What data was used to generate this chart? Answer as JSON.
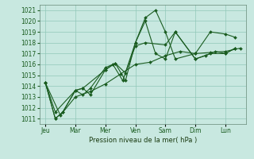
{
  "xlabel": "Pression niveau de la mer( hPa )",
  "bg_color": "#c8e8e0",
  "grid_color": "#90c8b8",
  "line_color": "#1a5c20",
  "ylim": [
    1010.5,
    1021.5
  ],
  "yticks": [
    1011,
    1012,
    1013,
    1014,
    1015,
    1016,
    1017,
    1018,
    1019,
    1020,
    1021
  ],
  "x_labels": [
    "Jeu",
    "Mar",
    "Mer",
    "Ven",
    "Sam",
    "Dim",
    "Lun"
  ],
  "x_positions": [
    0,
    1,
    2,
    3,
    4,
    5,
    6
  ],
  "xlim": [
    -0.2,
    6.7
  ],
  "series_x": [
    [
      0,
      0.33,
      0.58,
      1.0,
      1.25,
      1.5,
      2.0,
      2.33,
      2.67,
      3.0,
      3.33,
      3.67,
      4.0,
      4.33,
      5.0,
      5.5,
      6.0,
      6.33
    ],
    [
      0,
      0.33,
      0.58,
      1.0,
      1.25,
      1.5,
      2.0,
      2.33,
      2.67,
      3.0,
      3.33,
      4.0,
      4.33,
      5.0,
      5.33,
      5.67,
      6.0,
      6.33
    ],
    [
      0,
      0.33,
      1.0,
      1.25,
      2.0,
      2.25,
      2.58,
      3.0,
      3.33,
      3.67,
      4.0,
      4.33,
      5.0,
      5.5,
      6.0,
      6.33
    ],
    [
      0,
      0.5,
      1.0,
      1.5,
      2.0,
      2.5,
      3.0,
      3.5,
      4.0,
      4.5,
      5.0,
      5.5,
      6.0,
      6.5
    ]
  ],
  "series_y": [
    [
      1014.3,
      1011.0,
      1011.6,
      1013.6,
      1013.8,
      1013.2,
      1015.5,
      1016.1,
      1014.5,
      1018.0,
      1020.3,
      1021.0,
      1019.0,
      1016.5,
      1017.0,
      1019.0,
      1018.8,
      1018.5
    ],
    [
      1014.3,
      1011.0,
      1011.6,
      1013.6,
      1013.2,
      1013.8,
      1015.7,
      1016.1,
      1015.2,
      1017.7,
      1018.0,
      1017.8,
      1019.0,
      1016.5,
      1016.8,
      1017.2,
      1017.0,
      1017.5
    ],
    [
      1014.3,
      1011.6,
      1013.6,
      1013.8,
      1015.5,
      1016.0,
      1014.5,
      1018.0,
      1020.0,
      1017.0,
      1016.5,
      1019.0,
      1016.5,
      1017.0,
      1017.0,
      1017.5
    ],
    [
      1014.3,
      1011.3,
      1013.0,
      1013.5,
      1014.2,
      1015.1,
      1016.0,
      1016.2,
      1016.8,
      1017.2,
      1017.0,
      1017.1,
      1017.2,
      1017.5
    ]
  ]
}
